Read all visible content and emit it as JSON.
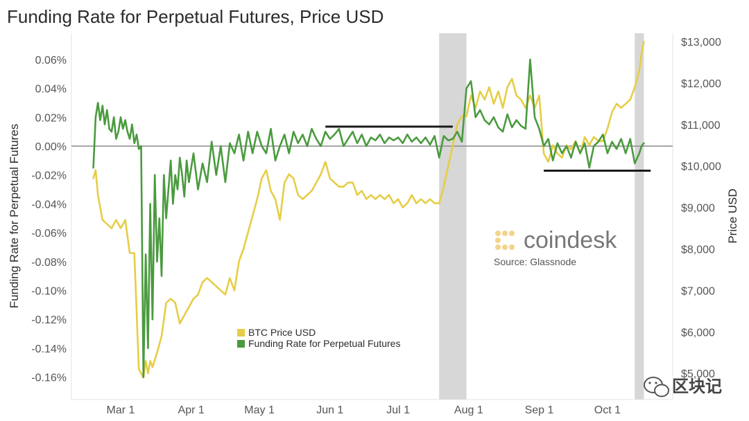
{
  "chart_data": {
    "type": "line",
    "title": "Funding Rate for Perpetual Futures, Price USD",
    "ylabel_left": "Funding Rate for Perpetual Futures",
    "ylabel_right": "Price USD",
    "ylim_left": [
      -0.17,
      0.065
    ],
    "ylim_right": [
      4500,
      13000
    ],
    "y_ticks_left": [
      "0.06%",
      "0.04%",
      "0.02%",
      "0.00%",
      "-0.02%",
      "-0.04%",
      "-0.06%",
      "-0.08%",
      "-0.10%",
      "-0.12%",
      "-0.14%",
      "-0.16%"
    ],
    "y_tick_values_left": [
      0.06,
      0.04,
      0.02,
      0.0,
      -0.02,
      -0.04,
      -0.06,
      -0.08,
      -0.1,
      -0.12,
      -0.14,
      -0.16
    ],
    "y_ticks_right": [
      "$13,000",
      "$12,000",
      "$11,000",
      "$10,000",
      "$9,000",
      "$8,000",
      "$7,000",
      "$6,000",
      "$5,000"
    ],
    "y_tick_values_right": [
      13000,
      12000,
      11000,
      10000,
      9000,
      8000,
      7000,
      6000,
      5000
    ],
    "x_ticks": [
      "Mar 1",
      "Apr 1",
      "May 1",
      "Jun 1",
      "Jul 1",
      "Aug 1",
      "Sep 1",
      "Oct 1"
    ],
    "x_tick_values": [
      0,
      31,
      61,
      92,
      122,
      153,
      184,
      214
    ],
    "x_unit": "days since Mar 1",
    "shaded_ranges": [
      [
        140,
        152
      ],
      [
        226,
        230
      ]
    ],
    "reference_lines": [
      {
        "x_start": 90,
        "x_end": 146,
        "y_left": 0.0135
      },
      {
        "x_start": 186,
        "x_end": 233,
        "y_left": -0.017
      }
    ],
    "zero_line_y_left": 0.0,
    "series": [
      {
        "name": "BTC Price USD",
        "axis": "right",
        "color": "#e6cd45",
        "x": [
          -12,
          -11,
          -10,
          -8,
          -6,
          -4,
          -2,
          0,
          2,
          4,
          6,
          8,
          10,
          11,
          12,
          13,
          14,
          16,
          18,
          20,
          22,
          24,
          26,
          28,
          30,
          32,
          34,
          36,
          38,
          40,
          42,
          44,
          46,
          48,
          50,
          52,
          54,
          56,
          58,
          60,
          62,
          64,
          66,
          68,
          70,
          72,
          74,
          76,
          78,
          80,
          82,
          84,
          86,
          88,
          90,
          92,
          94,
          96,
          98,
          100,
          102,
          104,
          106,
          108,
          110,
          112,
          114,
          116,
          118,
          120,
          122,
          124,
          126,
          128,
          130,
          132,
          134,
          136,
          138,
          140,
          142,
          144,
          146,
          148,
          150,
          152,
          154,
          156,
          158,
          160,
          162,
          164,
          166,
          168,
          170,
          172,
          174,
          176,
          178,
          180,
          182,
          184,
          186,
          188,
          190,
          192,
          194,
          196,
          198,
          200,
          202,
          204,
          206,
          208,
          210,
          212,
          214,
          216,
          218,
          220,
          222,
          224,
          226,
          228,
          229,
          230
        ],
        "values": [
          9700,
          9900,
          9300,
          8700,
          8600,
          8500,
          8700,
          8500,
          8700,
          7900,
          7900,
          5100,
          4900,
          5300,
          5000,
          5300,
          5150,
          5500,
          5900,
          6700,
          6800,
          6700,
          6200,
          6400,
          6600,
          6800,
          6900,
          7200,
          7300,
          7200,
          7100,
          7000,
          6900,
          7300,
          7000,
          7700,
          8000,
          8400,
          8800,
          9200,
          9700,
          9900,
          9400,
          9200,
          8700,
          9600,
          9800,
          9700,
          9300,
          9200,
          9300,
          9400,
          9600,
          9800,
          10100,
          9700,
          9600,
          9500,
          9500,
          9600,
          9600,
          9300,
          9400,
          9200,
          9300,
          9200,
          9300,
          9200,
          9300,
          9100,
          9200,
          9000,
          9100,
          9300,
          9100,
          9200,
          9100,
          9200,
          9100,
          9100,
          9500,
          10000,
          10500,
          11000,
          11200,
          11200,
          11700,
          11400,
          11800,
          11600,
          11900,
          11500,
          11800,
          11400,
          11900,
          12100,
          11700,
          11600,
          11400,
          11700,
          11400,
          11700,
          10300,
          10100,
          10500,
          10300,
          10200,
          10500,
          10400,
          10600,
          10300,
          10700,
          10500,
          10700,
          10600,
          10600,
          10900,
          11300,
          11500,
          11400,
          11500,
          11600,
          11900,
          12300,
          12700,
          13000
        ]
      },
      {
        "name": "Funding Rate for Perpetual Futures",
        "axis": "left",
        "color": "#4a9a3e",
        "x": [
          -12,
          -11,
          -10,
          -9,
          -8,
          -7,
          -6,
          -5,
          -4,
          -3,
          -2,
          -1,
          0,
          1,
          2,
          3,
          4,
          5,
          6,
          7,
          8,
          9,
          10,
          11,
          12,
          13,
          14,
          15,
          16,
          17,
          18,
          19,
          20,
          21,
          22,
          23,
          24,
          25,
          26,
          27,
          28,
          29,
          30,
          32,
          34,
          36,
          38,
          40,
          42,
          44,
          46,
          48,
          50,
          52,
          54,
          56,
          58,
          60,
          62,
          64,
          66,
          68,
          70,
          72,
          74,
          76,
          78,
          80,
          82,
          84,
          86,
          88,
          90,
          92,
          94,
          96,
          98,
          100,
          102,
          104,
          106,
          108,
          110,
          112,
          114,
          116,
          118,
          120,
          122,
          124,
          126,
          128,
          130,
          132,
          134,
          136,
          138,
          140,
          142,
          144,
          146,
          148,
          150,
          152,
          154,
          156,
          158,
          160,
          162,
          164,
          166,
          168,
          170,
          172,
          174,
          176,
          178,
          180,
          182,
          184,
          186,
          188,
          190,
          192,
          194,
          196,
          198,
          200,
          202,
          204,
          206,
          208,
          210,
          212,
          214,
          216,
          218,
          220,
          222,
          224,
          226,
          228,
          229,
          230
        ],
        "values": [
          -0.015,
          0.02,
          0.03,
          0.018,
          0.028,
          0.015,
          0.025,
          0.012,
          0.01,
          0.02,
          0.005,
          0.01,
          0.02,
          0.012,
          0.018,
          0.01,
          0.005,
          0.015,
          0.002,
          0.008,
          -0.002,
          0.0,
          -0.16,
          -0.075,
          -0.14,
          -0.04,
          -0.12,
          -0.02,
          -0.08,
          -0.05,
          -0.09,
          -0.02,
          -0.05,
          -0.03,
          -0.01,
          -0.04,
          -0.02,
          -0.03,
          -0.008,
          -0.02,
          -0.035,
          -0.01,
          -0.025,
          -0.005,
          -0.03,
          -0.012,
          -0.025,
          0.003,
          -0.02,
          0.0,
          -0.025,
          0.002,
          -0.005,
          0.008,
          -0.01,
          0.01,
          -0.005,
          0.01,
          0.0,
          -0.005,
          0.012,
          -0.01,
          0.0,
          0.008,
          -0.005,
          0.01,
          0.002,
          0.008,
          0.0,
          0.012,
          0.005,
          0.0,
          0.01,
          0.005,
          0.008,
          0.012,
          0.0,
          0.005,
          0.01,
          0.002,
          0.008,
          0.0,
          0.006,
          0.004,
          0.008,
          0.002,
          0.006,
          0.004,
          0.006,
          0.002,
          0.008,
          0.003,
          0.006,
          0.002,
          0.006,
          0.001,
          0.007,
          -0.008,
          0.007,
          0.004,
          0.005,
          0.01,
          0.003,
          0.04,
          0.045,
          0.02,
          0.025,
          0.018,
          0.015,
          0.02,
          0.013,
          0.01,
          0.022,
          0.013,
          0.018,
          0.014,
          0.012,
          0.06,
          0.02,
          0.012,
          0.0,
          0.005,
          -0.01,
          0.002,
          -0.005,
          0.0,
          -0.008,
          0.003,
          -0.005,
          0.002,
          -0.015,
          0.0,
          0.003,
          0.008,
          -0.005,
          0.003,
          -0.002,
          0.005,
          -0.005,
          0.005,
          -0.012,
          -0.005,
          0.0,
          0.002
        ]
      }
    ]
  },
  "brand": {
    "name": "coindesk",
    "source": "Source: Glassnode"
  },
  "watermark": {
    "text": "区块记"
  },
  "colors": {
    "price": "#e6cd45",
    "funding": "#4a9a3e",
    "shade": "#d7d7d7",
    "ref_line": "#1a1a1a",
    "zero_line": "#8a8a8a",
    "logo": "#f3d48a"
  }
}
